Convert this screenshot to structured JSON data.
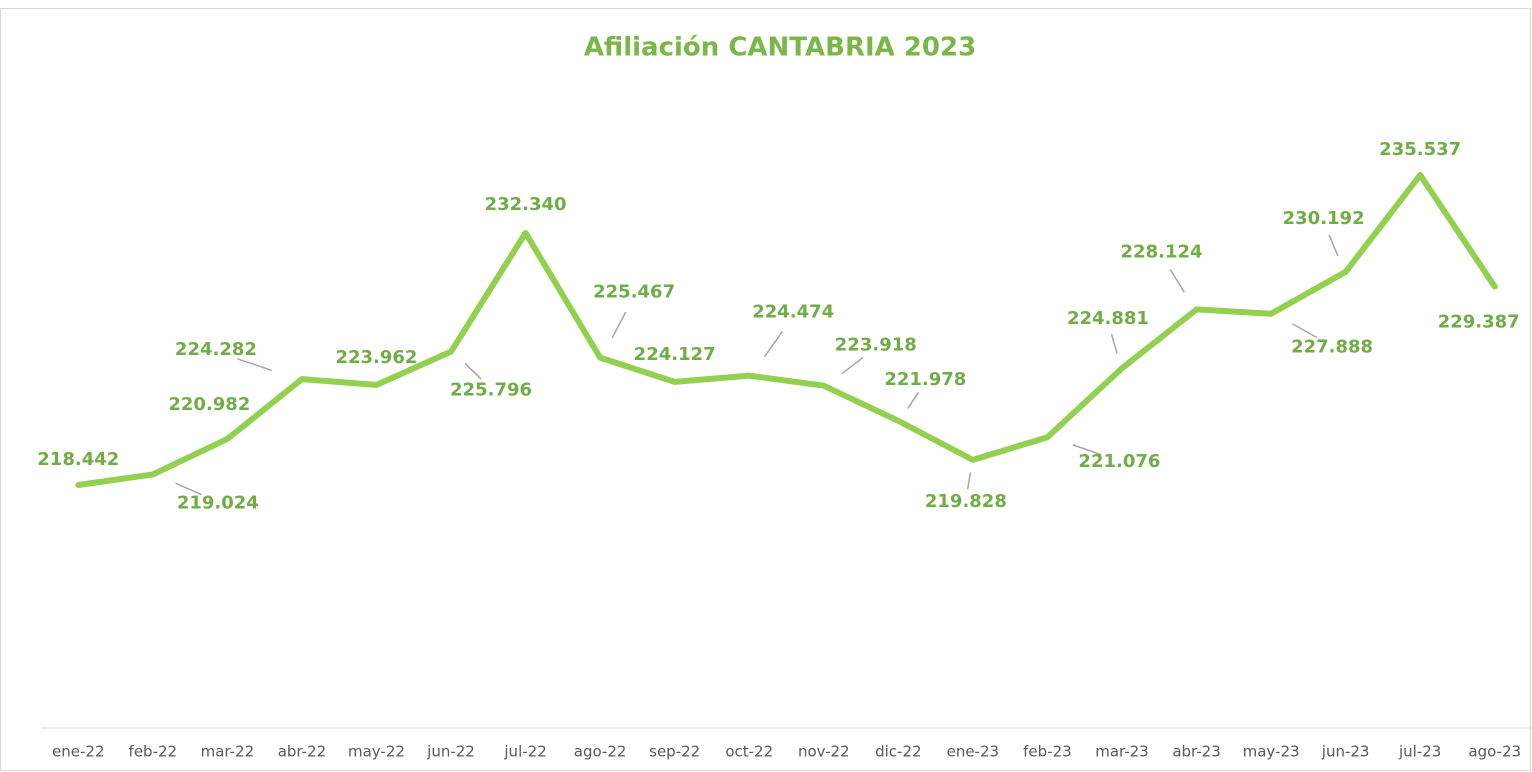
{
  "chart_data": {
    "type": "line",
    "title": "Afiliación CANTABRIA 2023",
    "categories": [
      "ene-22",
      "feb-22",
      "mar-22",
      "abr-22",
      "may-22",
      "jun-22",
      "jul-22",
      "ago-22",
      "sep-22",
      "oct-22",
      "nov-22",
      "dic-22",
      "ene-23",
      "feb-23",
      "mar-23",
      "abr-23",
      "may-23",
      "jun-23",
      "jul-23",
      "ago-23"
    ],
    "series": [
      {
        "color": "#92d050",
        "values": [
          218442,
          219024,
          220982,
          224282,
          223962,
          225796,
          232340,
          225467,
          224127,
          224474,
          223918,
          221978,
          219828,
          221076,
          224881,
          228124,
          227888,
          230192,
          235537,
          229387
        ],
        "value_labels": [
          "218.442",
          "219.024",
          "220.982",
          "224.282",
          "223.962",
          "225.796",
          "232.340",
          "225.467",
          "224.127",
          "224.474",
          "223.918",
          "221.978",
          "219.828",
          "221.076",
          "224.881",
          "228.124",
          "227.888",
          "230.192",
          "235.537",
          "229.387"
        ]
      }
    ]
  }
}
